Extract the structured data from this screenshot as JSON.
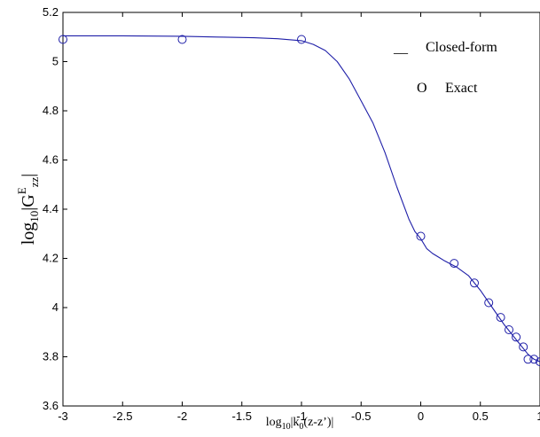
{
  "chart_data": {
    "type": "line",
    "xlabel": {
      "prefix": "log",
      "prefix_sub": "10",
      "body_start": "|k",
      "body_sub": "0",
      "body_end": "(z-z’)|"
    },
    "ylabel": {
      "prefix": "log",
      "prefix_sub": "10",
      "body_start": "|G",
      "body_sup": "E",
      "body_sub": "zz",
      "body_end": "|"
    },
    "xlim": [
      -3,
      1
    ],
    "ylim": [
      3.6,
      5.2
    ],
    "xticks": [
      -3,
      -2.5,
      -2,
      -1.5,
      -1,
      -0.5,
      0,
      0.5,
      1
    ],
    "xtick_labels": [
      "-3",
      "-2.5",
      "-2",
      "-1.5",
      "-1",
      "-0.5",
      "0",
      "0.5",
      "1"
    ],
    "yticks": [
      3.6,
      3.8,
      4,
      4.2,
      4.4,
      4.6,
      4.8,
      5,
      5.2
    ],
    "ytick_labels": [
      "3.6",
      "3.8",
      "4",
      "4.2",
      "4.4",
      "4.6",
      "4.8",
      "5",
      "5.2"
    ],
    "grid": false,
    "legend": [
      {
        "marker": "__",
        "label": "Closed-form"
      },
      {
        "marker": "O",
        "label": "Exact"
      }
    ],
    "series": [
      {
        "style": "line",
        "color": "#1f1fa8",
        "x": [
          -3,
          -2.5,
          -2,
          -1.7,
          -1.4,
          -1.2,
          -1,
          -0.9,
          -0.8,
          -0.7,
          -0.6,
          -0.5,
          -0.4,
          -0.3,
          -0.2,
          -0.1,
          -0.05,
          0,
          0.05,
          0.1,
          0.15,
          0.2,
          0.3,
          0.4,
          0.5,
          0.6,
          0.7,
          0.8,
          0.9,
          0.95,
          1
        ],
        "y": [
          5.105,
          5.105,
          5.103,
          5.1,
          5.097,
          5.093,
          5.085,
          5.07,
          5.045,
          5.0,
          4.93,
          4.84,
          4.75,
          4.63,
          4.49,
          4.36,
          4.31,
          4.28,
          4.24,
          4.22,
          4.205,
          4.19,
          4.165,
          4.13,
          4.07,
          4.0,
          3.93,
          3.87,
          3.81,
          3.79,
          3.78
        ]
      },
      {
        "style": "markers",
        "color": "#1f1fa8",
        "x": [
          -3,
          -2,
          -1,
          0,
          0.28,
          0.45,
          0.57,
          0.67,
          0.74,
          0.8,
          0.86,
          0.9,
          0.95,
          1
        ],
        "y": [
          5.09,
          5.09,
          5.09,
          4.29,
          4.18,
          4.1,
          4.02,
          3.96,
          3.91,
          3.88,
          3.84,
          3.79,
          3.79,
          3.78
        ]
      }
    ]
  }
}
